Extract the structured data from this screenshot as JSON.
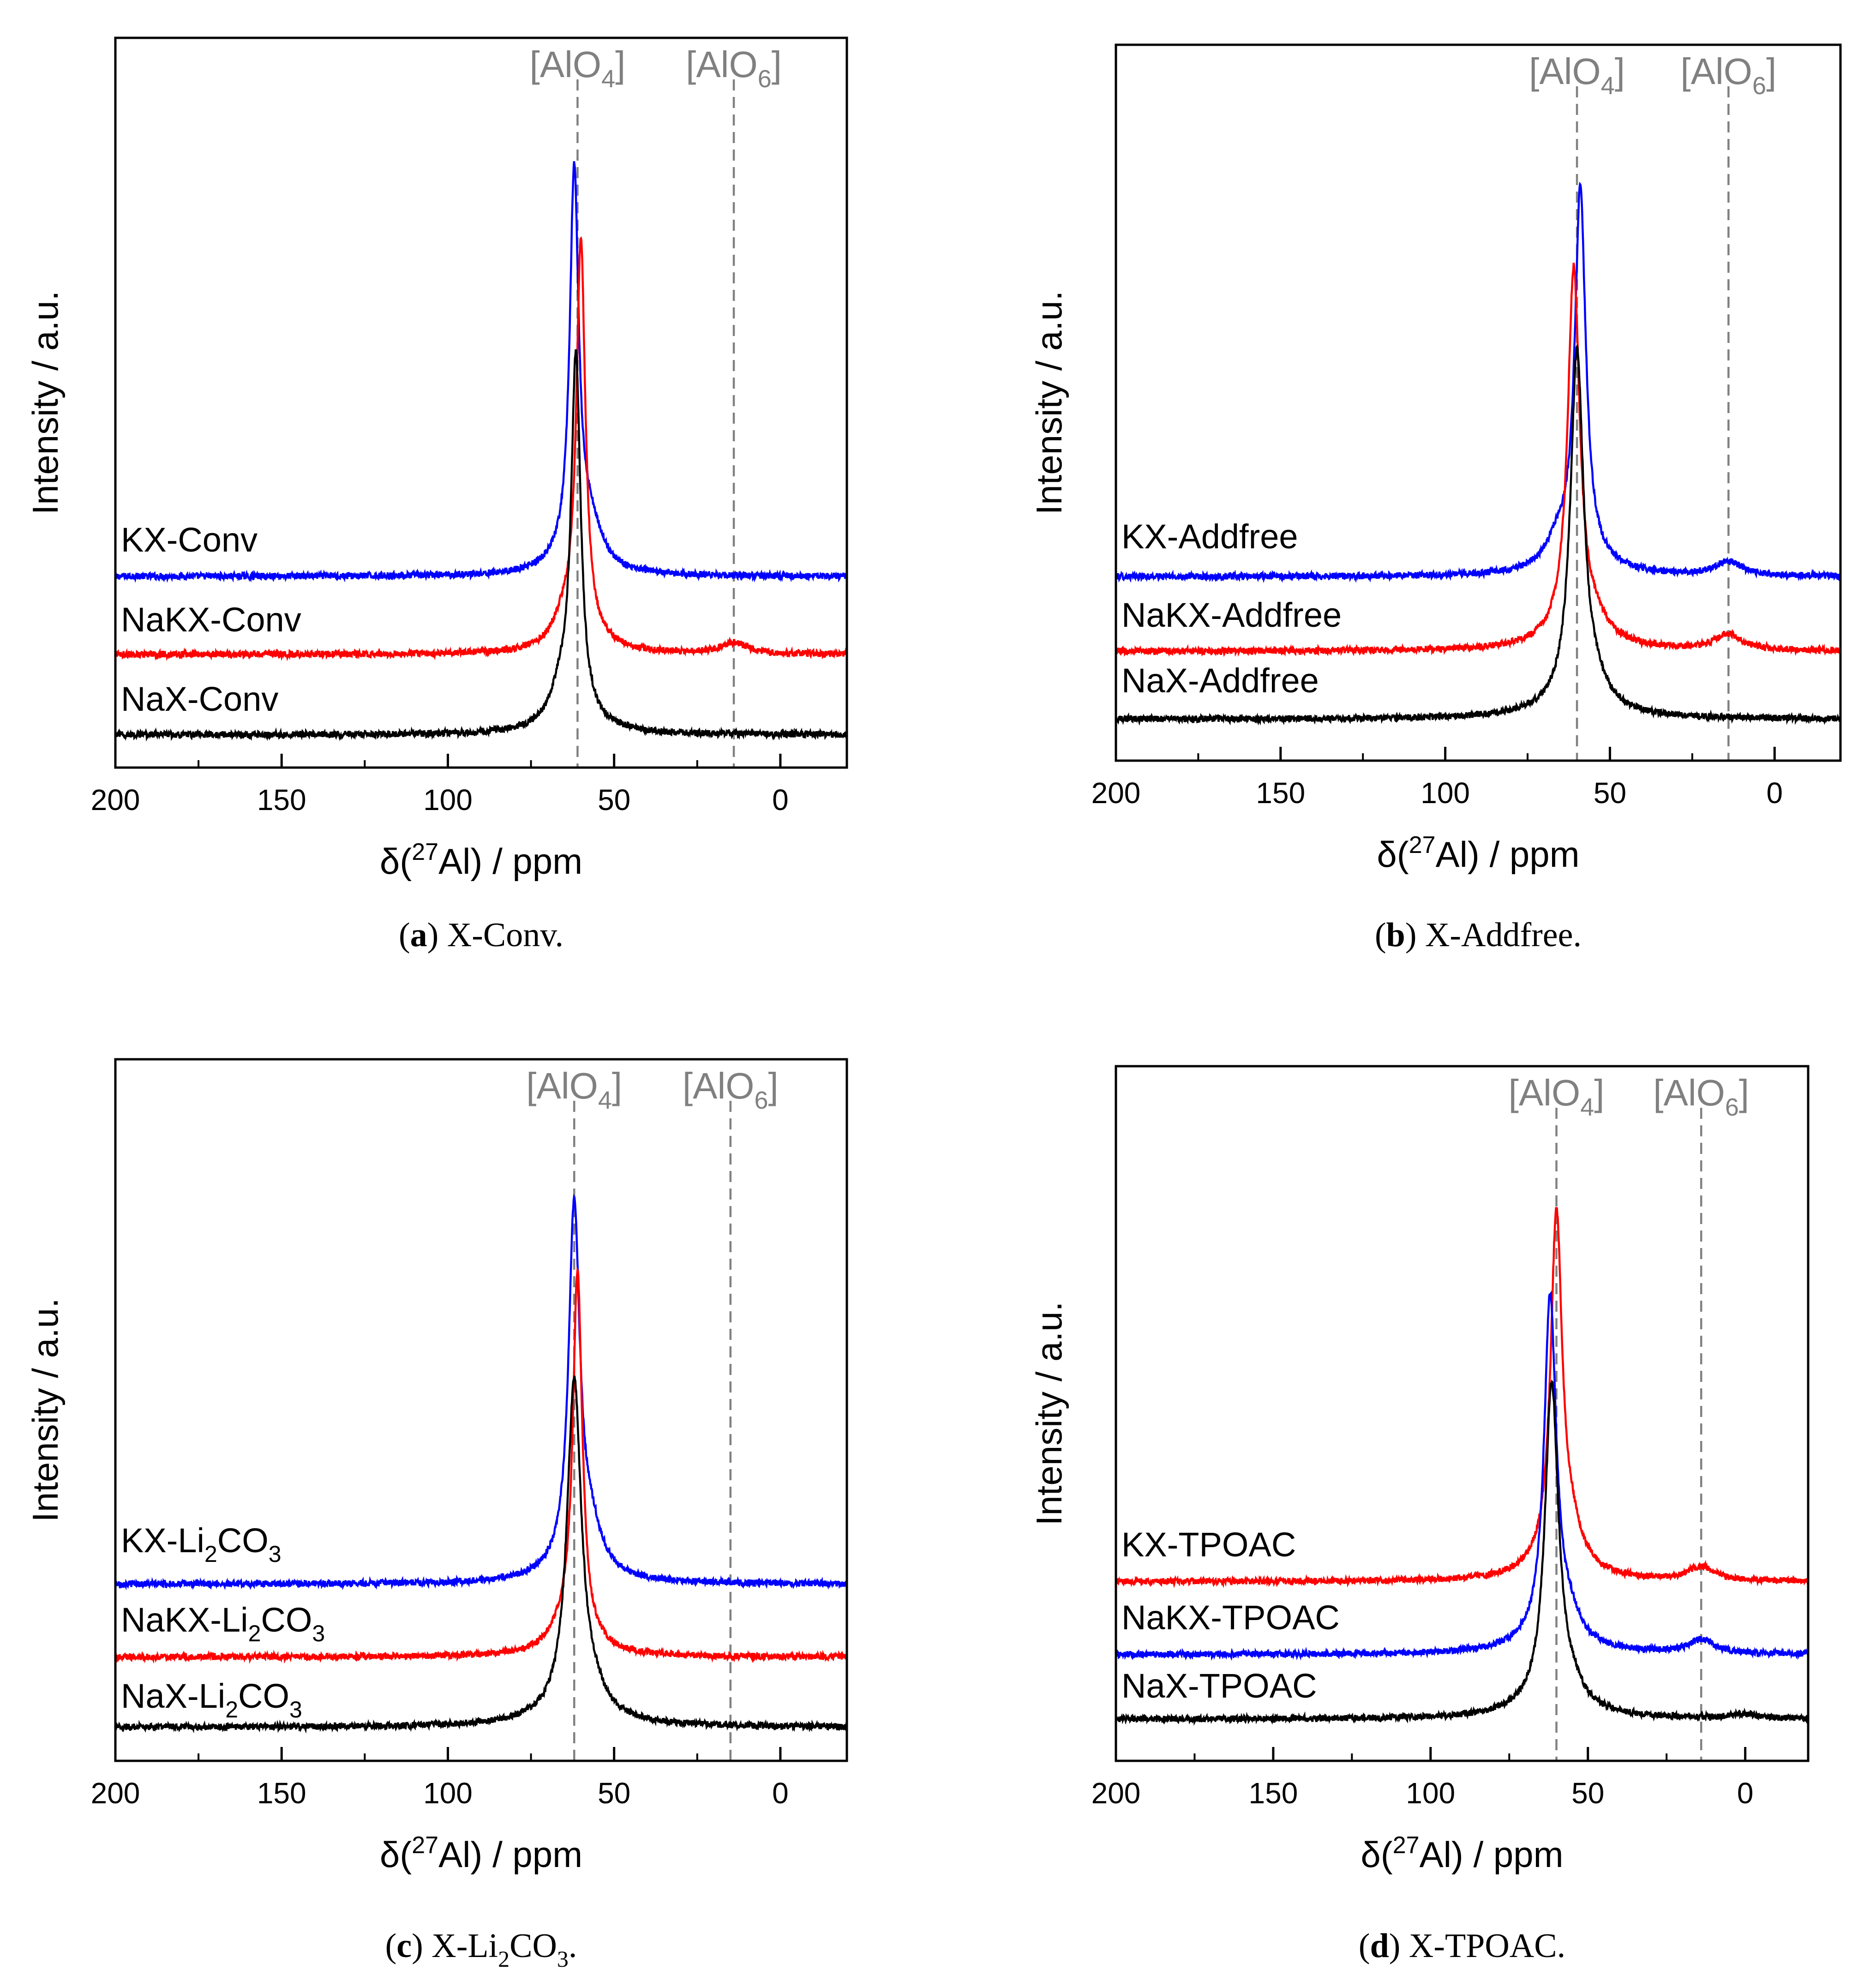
{
  "figure": {
    "panels": [
      {
        "letter": "a",
        "caption": "X-Conv.",
        "xlabel": "δ(27Al) / ppm",
        "ylabel": "Intensity / a.u.",
        "ref_lines": [
          {
            "ppm": 61,
            "label": "[AlO4]"
          },
          {
            "ppm": 14,
            "label": "[AlO6]"
          }
        ],
        "series_labels": [
          "KX-Conv",
          "NaKX-Conv",
          "NaX-Conv"
        ]
      },
      {
        "letter": "b",
        "caption": "X-Addfree.",
        "xlabel": "δ(27Al) / ppm",
        "ylabel": "Intensity / a.u.",
        "ref_lines": [
          {
            "ppm": 60,
            "label": "[AlO4]"
          },
          {
            "ppm": 14,
            "label": "[AlO6]"
          }
        ],
        "series_labels": [
          "KX-Addfree",
          "NaKX-Addfree",
          "NaX-Addfree"
        ]
      },
      {
        "letter": "c",
        "caption": "X-Li2CO3.",
        "xlabel": "δ(27Al) / ppm",
        "ylabel": "Intensity / a.u.",
        "ref_lines": [
          {
            "ppm": 62,
            "label": "[AlO4]"
          },
          {
            "ppm": 15,
            "label": "[AlO6]"
          }
        ],
        "series_labels": [
          "KX-Li2CO3",
          "NaKX-Li2CO3",
          "NaX-Li2CO3"
        ]
      },
      {
        "letter": "d",
        "caption": "X-TPOAC.",
        "xlabel": "δ(27Al) / ppm",
        "ylabel": "Intensity / a.u.",
        "ref_lines": [
          {
            "ppm": 60,
            "label": "[AlO4]"
          },
          {
            "ppm": 14,
            "label": "[AlO6]"
          }
        ],
        "series_labels": [
          "KX-TPOAC",
          "NaKX-TPOAC",
          "NaX-TPOAC"
        ]
      }
    ]
  },
  "chart_data": [
    {
      "type": "line",
      "title": "(a) X-Conv.",
      "xlabel": "δ(27Al) / ppm",
      "ylabel": "Intensity / a.u.",
      "xlim": [
        200,
        -20
      ],
      "ylim": [
        0,
        1
      ],
      "xticks": [
        200,
        150,
        100,
        50,
        0
      ],
      "vlines_ppm": [
        61,
        14
      ],
      "series": [
        {
          "name": "KX-Conv",
          "color": "#0000ff",
          "baseline": 0.262,
          "peak_ppm": 62,
          "peak_height": 0.525,
          "width_ppm": 1.6,
          "shoulder_ppm": 57,
          "shoulder_height": 0.05,
          "side_ppm": 14,
          "side_height": 0.0
        },
        {
          "name": "NaKX-Conv",
          "color": "#ff0000",
          "baseline": 0.155,
          "peak_ppm": 60,
          "peak_height": 0.535,
          "width_ppm": 1.6,
          "shoulder_ppm": 65,
          "shoulder_height": 0.03,
          "side_ppm": 14,
          "side_height": 0.015
        },
        {
          "name": "NaX-Conv",
          "color": "#000000",
          "baseline": 0.045,
          "peak_ppm": 61.5,
          "peak_height": 0.485,
          "width_ppm": 1.7,
          "shoulder_ppm": 66,
          "shoulder_height": 0.04,
          "side_ppm": 14,
          "side_height": 0.0
        }
      ]
    },
    {
      "type": "line",
      "title": "(b) X-Addfree.",
      "xlabel": "δ(27Al) / ppm",
      "ylabel": "Intensity / a.u.",
      "xlim": [
        200,
        -20
      ],
      "ylim": [
        0,
        1
      ],
      "xticks": [
        200,
        150,
        100,
        50,
        0
      ],
      "vlines_ppm": [
        60,
        14
      ],
      "series": [
        {
          "name": "KX-Addfree",
          "color": "#0000ff",
          "baseline": 0.257,
          "peak_ppm": 59,
          "peak_height": 0.515,
          "width_ppm": 2.0,
          "shoulder_ppm": 66,
          "shoulder_height": 0.03,
          "side_ppm": 14,
          "side_height": 0.02
        },
        {
          "name": "NaKX-Addfree",
          "color": "#ff0000",
          "baseline": 0.153,
          "peak_ppm": 61,
          "peak_height": 0.51,
          "width_ppm": 2.2,
          "shoulder_ppm": 54,
          "shoulder_height": 0.02,
          "side_ppm": 14,
          "side_height": 0.022
        },
        {
          "name": "NaX-Addfree",
          "color": "#000000",
          "baseline": 0.058,
          "peak_ppm": 60,
          "peak_height": 0.49,
          "width_ppm": 2.4,
          "shoulder_ppm": 54,
          "shoulder_height": 0.02,
          "side_ppm": 14,
          "side_height": 0.0
        }
      ]
    },
    {
      "type": "line",
      "title": "(c) X-Li2CO3.",
      "xlabel": "δ(27Al) / ppm",
      "ylabel": "Intensity / a.u.",
      "xlim": [
        200,
        -20
      ],
      "ylim": [
        0,
        1
      ],
      "xticks": [
        200,
        150,
        100,
        50,
        0
      ],
      "vlines_ppm": [
        62,
        15
      ],
      "series": [
        {
          "name": "KX-Li2CO3",
          "color": "#0000ff",
          "baseline": 0.252,
          "peak_ppm": 62,
          "peak_height": 0.51,
          "width_ppm": 2.0,
          "shoulder_ppm": 57,
          "shoulder_height": 0.05,
          "side_ppm": 15,
          "side_height": 0.0
        },
        {
          "name": "NaKX-Li2CO3",
          "color": "#ff0000",
          "baseline": 0.148,
          "peak_ppm": 61,
          "peak_height": 0.52,
          "width_ppm": 1.7,
          "shoulder_ppm": 66,
          "shoulder_height": 0.02,
          "side_ppm": 15,
          "side_height": 0.0
        },
        {
          "name": "NaX-Li2CO3",
          "color": "#000000",
          "baseline": 0.048,
          "peak_ppm": 62,
          "peak_height": 0.47,
          "width_ppm": 2.6,
          "shoulder_ppm": 56,
          "shoulder_height": 0.02,
          "side_ppm": 15,
          "side_height": 0.0
        }
      ]
    },
    {
      "type": "line",
      "title": "(d) X-TPOAC.",
      "xlabel": "δ(27Al) / ppm",
      "ylabel": "Intensity / a.u.",
      "xlim": [
        200,
        -20
      ],
      "ylim": [
        0,
        1
      ],
      "xticks": [
        200,
        150,
        100,
        50,
        0
      ],
      "vlines_ppm": [
        60,
        14
      ],
      "series": [
        {
          "name": "KX-TPOAC",
          "color": "#ff0000",
          "baseline": 0.258,
          "peak_ppm": 60,
          "peak_height": 0.5,
          "width_ppm": 2.2,
          "shoulder_ppm": 55,
          "shoulder_height": 0.04,
          "side_ppm": 14,
          "side_height": 0.02
        },
        {
          "name": "NaKX-TPOAC",
          "color": "#0000ff",
          "baseline": 0.153,
          "peak_ppm": 62,
          "peak_height": 0.49,
          "width_ppm": 2.3,
          "shoulder_ppm": 56,
          "shoulder_height": 0.03,
          "side_ppm": 14,
          "side_height": 0.02
        },
        {
          "name": "NaX-TPOAC",
          "color": "#000000",
          "baseline": 0.06,
          "peak_ppm": 61.5,
          "peak_height": 0.46,
          "width_ppm": 2.6,
          "shoulder_ppm": 55,
          "shoulder_height": 0.02,
          "side_ppm": 0,
          "side_height": 0.006
        }
      ]
    }
  ]
}
